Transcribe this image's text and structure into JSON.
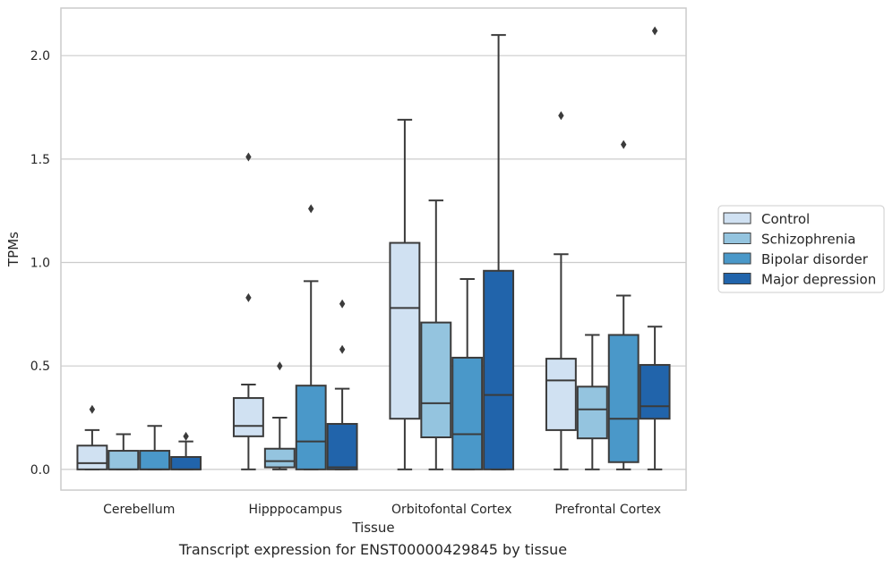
{
  "caption": "Transcript expression for ENST00000429845 by tissue",
  "chart_data": {
    "type": "boxplot",
    "xlabel": "Tissue",
    "ylabel": "TPMs",
    "ylim": [
      -0.1,
      2.23
    ],
    "yticks": [
      0.0,
      0.5,
      1.0,
      1.5,
      2.0
    ],
    "ytick_labels": [
      "0.0",
      "0.5",
      "1.0",
      "1.5",
      "2.0"
    ],
    "grid": "horizontal",
    "legend_position": "right",
    "categories": [
      "Cerebellum",
      "Hipppocampus",
      "Orbitofontal Cortex",
      "Prefrontal Cortex"
    ],
    "series": [
      {
        "name": "Control",
        "color": "#d0e1f2",
        "boxes": [
          {
            "whislo": 0.0,
            "q1": 0.0,
            "med": 0.03,
            "q3": 0.115,
            "whishi": 0.19,
            "fliers": [
              0.29
            ]
          },
          {
            "whislo": 0.0,
            "q1": 0.16,
            "med": 0.21,
            "q3": 0.345,
            "whishi": 0.41,
            "fliers": [
              0.83,
              1.51
            ]
          },
          {
            "whislo": 0.0,
            "q1": 0.245,
            "med": 0.78,
            "q3": 1.095,
            "whishi": 1.69,
            "fliers": []
          },
          {
            "whislo": 0.0,
            "q1": 0.19,
            "med": 0.43,
            "q3": 0.535,
            "whishi": 1.04,
            "fliers": [
              1.71
            ]
          }
        ]
      },
      {
        "name": "Schizophrenia",
        "color": "#94c4df",
        "boxes": [
          {
            "whislo": 0.0,
            "q1": 0.0,
            "med": 0.0,
            "q3": 0.09,
            "whishi": 0.17,
            "fliers": []
          },
          {
            "whislo": 0.0,
            "q1": 0.01,
            "med": 0.04,
            "q3": 0.1,
            "whishi": 0.25,
            "fliers": [
              0.5
            ]
          },
          {
            "whislo": 0.0,
            "q1": 0.155,
            "med": 0.32,
            "q3": 0.71,
            "whishi": 1.3,
            "fliers": []
          },
          {
            "whislo": 0.0,
            "q1": 0.15,
            "med": 0.29,
            "q3": 0.4,
            "whishi": 0.65,
            "fliers": []
          }
        ]
      },
      {
        "name": "Bipolar disorder",
        "color": "#4a98c9",
        "boxes": [
          {
            "whislo": 0.0,
            "q1": 0.0,
            "med": 0.0,
            "q3": 0.09,
            "whishi": 0.21,
            "fliers": []
          },
          {
            "whislo": 0.0,
            "q1": 0.0,
            "med": 0.135,
            "q3": 0.405,
            "whishi": 0.91,
            "fliers": [
              1.26
            ]
          },
          {
            "whislo": 0.0,
            "q1": 0.0,
            "med": 0.17,
            "q3": 0.54,
            "whishi": 0.92,
            "fliers": []
          },
          {
            "whislo": 0.0,
            "q1": 0.035,
            "med": 0.245,
            "q3": 0.65,
            "whishi": 0.84,
            "fliers": [
              1.57
            ]
          }
        ]
      },
      {
        "name": "Major depression",
        "color": "#2164ab",
        "boxes": [
          {
            "whislo": 0.0,
            "q1": 0.0,
            "med": 0.0,
            "q3": 0.06,
            "whishi": 0.135,
            "fliers": [
              0.16
            ]
          },
          {
            "whislo": 0.0,
            "q1": 0.0,
            "med": 0.01,
            "q3": 0.22,
            "whishi": 0.39,
            "fliers": [
              0.58,
              0.8
            ]
          },
          {
            "whislo": 0.0,
            "q1": 0.0,
            "med": 0.36,
            "q3": 0.96,
            "whishi": 2.1,
            "fliers": []
          },
          {
            "whislo": 0.0,
            "q1": 0.245,
            "med": 0.305,
            "q3": 0.505,
            "whishi": 0.69,
            "fliers": [
              2.12
            ]
          }
        ]
      }
    ]
  }
}
